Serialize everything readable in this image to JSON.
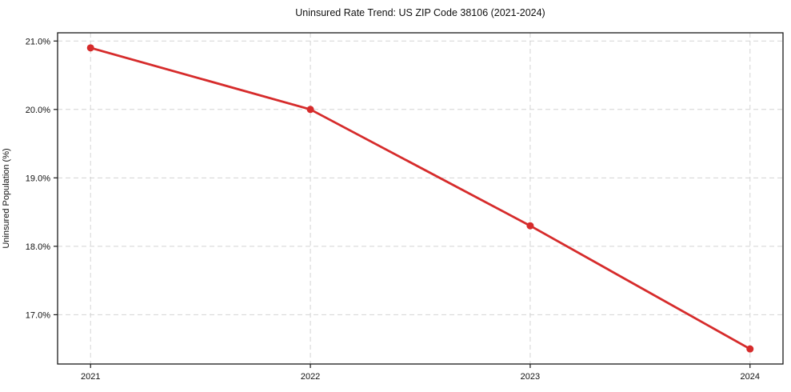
{
  "chart_data": {
    "type": "line",
    "title": "Uninsured Rate Trend: US ZIP Code 38106 (2021-2024)",
    "xlabel": "",
    "ylabel": "Uninsured Population (%)",
    "categories": [
      "2021",
      "2022",
      "2023",
      "2024"
    ],
    "values": [
      20.9,
      20.0,
      18.3,
      16.5
    ],
    "series": [
      {
        "name": "Uninsured rate",
        "values": [
          20.9,
          20.0,
          18.3,
          16.5
        ]
      }
    ],
    "yticks": [
      21.0,
      20.0,
      19.0,
      18.0,
      17.0
    ],
    "ytick_labels": [
      "21.0%",
      "20.0%",
      "19.0%",
      "18.0%",
      "17.0%"
    ],
    "ylim": [
      16.28,
      21.12
    ],
    "grid": true,
    "grid_style": "dashed",
    "legend": "none",
    "colors": {
      "line": "#d62b2b",
      "marker": "#d62b2b",
      "grid": "#d4d4d4",
      "axis": "#1a1a1a",
      "background": "#ffffff"
    }
  }
}
